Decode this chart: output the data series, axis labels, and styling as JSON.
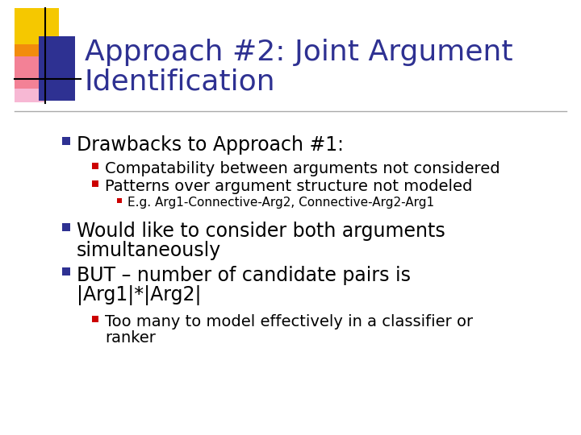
{
  "title_line1": "Approach #2: Joint Argument",
  "title_line2": "Identification",
  "title_color": "#2E3192",
  "title_fontsize": 26,
  "bg_color": "#FFFFFF",
  "accent_yellow": "#F5C800",
  "accent_blue": "#2E3192",
  "accent_red": "#ED1C24",
  "accent_pink": "#F49AC2",
  "bullet_color": "#2E3192",
  "sub_bullet_color": "#CC0000",
  "bullet1_text": "Drawbacks to Approach #1:",
  "bullet1_fontsize": 17,
  "sub_bullets": [
    "Compatability between arguments not considered",
    "Patterns over argument structure not modeled"
  ],
  "sub_fontsize": 14,
  "sub_sub_text": "E.g. Arg1-Connective-Arg2, Connective-Arg2-Arg1",
  "sub_sub_fontsize": 11,
  "bullet2_line1": "Would like to consider both arguments",
  "bullet2_line2": "simultaneously",
  "bullet2_fontsize": 17,
  "bullet3_line1": "BUT – number of candidate pairs is",
  "bullet3_line2": "|Arg1|*|Arg2|",
  "bullet3_fontsize": 17,
  "sub_bullet3_line1": "Too many to model effectively in a classifier or",
  "sub_bullet3_line2": "ranker",
  "sub_bullet3_fontsize": 14,
  "sep_line_color": "#AAAAAA"
}
